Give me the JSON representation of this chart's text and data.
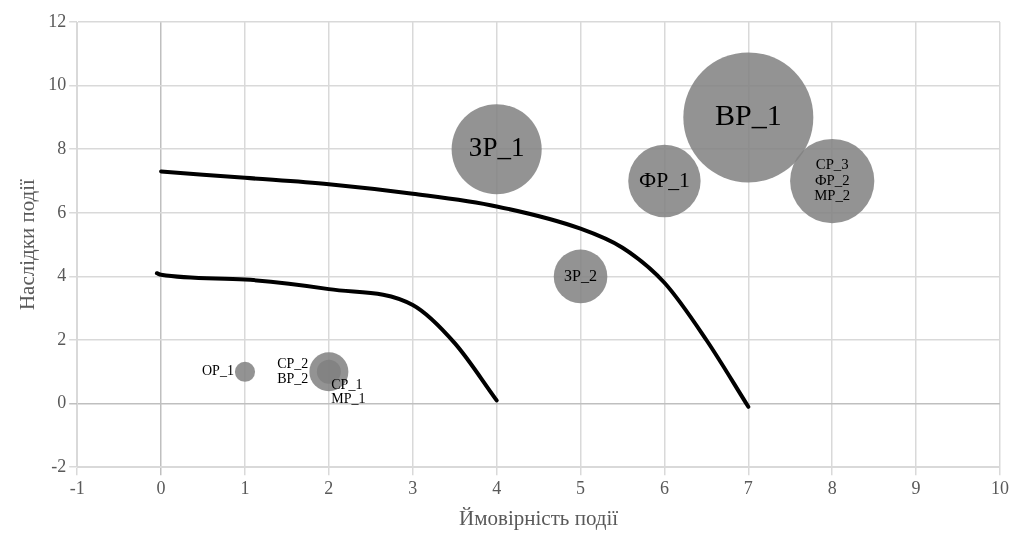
{
  "chart_data": {
    "type": "bubble",
    "xlabel": "Ймовірність події",
    "ylabel": "Наслідки події",
    "xlim": [
      -1,
      10
    ],
    "xticks": [
      -1,
      0,
      1,
      2,
      3,
      4,
      5,
      6,
      7,
      8,
      9,
      10
    ],
    "ylim": [
      -2,
      12
    ],
    "yticks": [
      -2,
      0,
      2,
      4,
      6,
      8,
      10,
      12
    ],
    "grid": true,
    "series": [
      {
        "name": "ОР_1",
        "color": "#808080",
        "x": [
          1
        ],
        "values": [
          1
        ],
        "sizes": [
          0.024
        ]
      },
      {
        "name": "СР_2\nВР_2",
        "color": "#808080",
        "x": [
          2
        ],
        "values": [
          1
        ],
        "sizes": [
          0.09
        ]
      },
      {
        "name": "СР_1\nМР_1",
        "color": "#808080",
        "x": [
          2
        ],
        "values": [
          1
        ],
        "sizes": [
          0.034
        ]
      },
      {
        "name": "ЗР_1",
        "color": "#808080",
        "x": [
          4
        ],
        "values": [
          8
        ],
        "sizes": [
          0.48
        ]
      },
      {
        "name": "ЗР_2",
        "color": "#808080",
        "x": [
          5
        ],
        "values": [
          4
        ],
        "sizes": [
          0.17
        ]
      },
      {
        "name": "ФР_1",
        "color": "#808080",
        "x": [
          6
        ],
        "values": [
          7
        ],
        "sizes": [
          0.31
        ]
      },
      {
        "name": "ВР_1",
        "color": "#808080",
        "x": [
          7
        ],
        "values": [
          9
        ],
        "sizes": [
          1
        ]
      },
      {
        "name": "СР_3\nФР_2\nМР_2",
        "color": "#808080",
        "x": [
          8
        ],
        "values": [
          7
        ],
        "sizes": [
          0.42
        ]
      },
      {
        "type": "line",
        "color": "#000000",
        "x": [
          -0.05,
          0,
          1,
          2,
          3,
          3.5,
          4
        ],
        "values": [
          4.1,
          4.05,
          3.9,
          3.6,
          3.1,
          1.9,
          0.1
        ]
      },
      {
        "type": "line",
        "color": "#000000",
        "x": [
          0,
          1,
          2,
          3,
          4,
          5,
          5.5,
          6,
          6.5,
          7
        ],
        "values": [
          7.3,
          7.1,
          6.9,
          6.6,
          6.2,
          5.5,
          4.9,
          3.8,
          2.0,
          -0.1
        ]
      }
    ]
  }
}
